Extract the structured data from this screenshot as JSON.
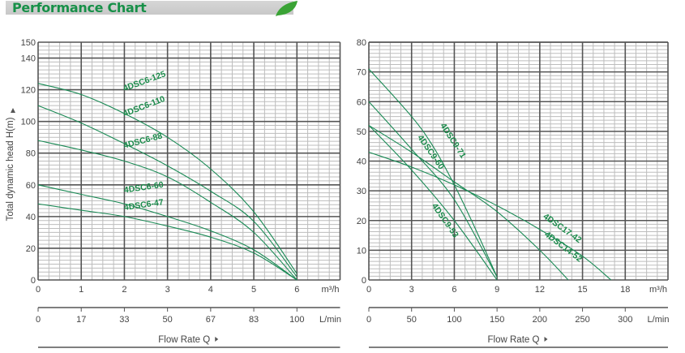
{
  "header": {
    "title": "Performance Chart",
    "leaf_icon": "leaf-icon",
    "leaf_color": "#3aa335"
  },
  "colors": {
    "curve": "#1a8a55",
    "label": "#1a8a4a",
    "major_grid": "#555555",
    "minor_grid": "#bdbdbd"
  },
  "chart_data": [
    {
      "type": "line",
      "ylabel": "Total dynamic head H(m)",
      "xlabel": "Flow Rate Q",
      "x_unit": "m³/h",
      "x2_unit": "L/min",
      "xlim": [
        0,
        7
      ],
      "ylim": [
        0,
        150
      ],
      "x_ticks": [
        "0",
        "1",
        "2",
        "3",
        "4",
        "5",
        "6"
      ],
      "y_ticks": [
        "0",
        "20",
        "40",
        "60",
        "80",
        "100",
        "120",
        "140",
        "150"
      ],
      "x2_ticks": [
        "0",
        "17",
        "33",
        "50",
        "67",
        "83",
        "100"
      ],
      "grid": true,
      "series": [
        {
          "name": "4DSC6-125",
          "x": [
            0,
            1,
            2,
            3,
            4,
            5,
            6
          ],
          "y": [
            124,
            117,
            105,
            90,
            70,
            43,
            4
          ]
        },
        {
          "name": "4DSC6-110",
          "x": [
            0,
            1,
            2,
            3,
            4,
            5,
            6
          ],
          "y": [
            110,
            99,
            86,
            72,
            56,
            37,
            2
          ]
        },
        {
          "name": "4DSC6-88",
          "x": [
            0,
            1,
            2,
            3,
            4,
            5,
            6
          ],
          "y": [
            88,
            82,
            75,
            65,
            49,
            30,
            0
          ]
        },
        {
          "name": "4DSC6-60",
          "x": [
            0,
            1,
            2,
            3,
            4,
            5,
            6
          ],
          "y": [
            60,
            54,
            48,
            40,
            31,
            19,
            0
          ]
        },
        {
          "name": "4DSC6-47",
          "x": [
            0,
            1,
            2,
            3,
            4,
            5,
            6
          ],
          "y": [
            48,
            44,
            40,
            34,
            27,
            17,
            0
          ]
        }
      ]
    },
    {
      "type": "line",
      "xlabel": "Flow Rate Q",
      "x_unit": "m³/h",
      "x2_unit": "L/min",
      "xlim": [
        0,
        21
      ],
      "ylim": [
        0,
        80
      ],
      "x_ticks": [
        "0",
        "3",
        "6",
        "9",
        "12",
        "15",
        "18"
      ],
      "y_ticks": [
        "0",
        "10",
        "20",
        "30",
        "40",
        "50",
        "60",
        "70",
        "80"
      ],
      "x2_ticks": [
        "0",
        "50",
        "100",
        "150",
        "200",
        "250",
        "300"
      ],
      "grid": true,
      "series": [
        {
          "name": "4DSC9-71",
          "x": [
            0,
            3,
            4.5,
            6,
            7.5,
            9
          ],
          "y": [
            71,
            55,
            45,
            32,
            17,
            1
          ]
        },
        {
          "name": "4DSC9-60",
          "x": [
            0,
            3,
            6,
            9
          ],
          "y": [
            60,
            44,
            27,
            1
          ]
        },
        {
          "name": "4DSC9-53",
          "x": [
            0,
            3,
            6,
            9
          ],
          "y": [
            52,
            37,
            20,
            0
          ]
        },
        {
          "name": "4DSC14-52",
          "x": [
            0,
            3,
            6,
            9,
            12,
            14
          ],
          "y": [
            52,
            43,
            33,
            23,
            10,
            0
          ]
        },
        {
          "name": "4DSC17-42",
          "x": [
            0,
            3,
            6,
            9,
            12,
            15,
            17
          ],
          "y": [
            43,
            38,
            32,
            25,
            17,
            8,
            0
          ]
        }
      ]
    }
  ]
}
